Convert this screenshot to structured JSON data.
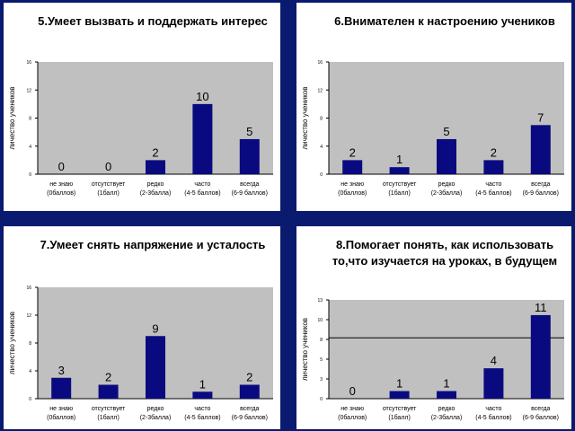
{
  "colors": {
    "background": "#0a1a6e",
    "panel": "#ffffff",
    "plot_area": "#c0c0c0",
    "bar": "#0a0a80",
    "reference_line": "#000000"
  },
  "panels": [
    {
      "title": "5.Умеет вызвать и поддержать интерес"
    },
    {
      "title": "6.Внимателен к настроению учеников"
    },
    {
      "title": "7.Умеет снять напряжение и усталость"
    },
    {
      "title": "8.Помогает понять, как использовать то,что изучается на уроках, в будущем"
    }
  ],
  "chart_data": [
    {
      "type": "bar",
      "title": "5.Умеет вызвать и поддержать интерес",
      "ylabel": "личество учеников",
      "ylim": [
        0,
        16
      ],
      "yticks": [
        "0",
        "4",
        "8",
        "12",
        "16"
      ],
      "categories": [
        "не знаю (0баллов)",
        "отсутствует (1балл)",
        "редко (2-3балла)",
        "часто (4-5 баллов)",
        "всегда (6-9 баллов)"
      ],
      "values": [
        0,
        0,
        2,
        10,
        5
      ],
      "data_labels": [
        "0",
        "0",
        "2",
        "10",
        "5"
      ],
      "grid": false
    },
    {
      "type": "bar",
      "title": "6.Внимателен к настроению учеников",
      "ylabel": "личество учеников",
      "ylim": [
        0,
        16
      ],
      "yticks": [
        "0",
        "4",
        "8",
        "12",
        "16"
      ],
      "categories": [
        "не знаю (0баллов)",
        "отсутствует (1балл)",
        "редко (2-3балла)",
        "часто (4-5 баллов)",
        "всегда (6-9 баллов)"
      ],
      "values": [
        2,
        1,
        5,
        2,
        7
      ],
      "data_labels": [
        "2",
        "1",
        "5",
        "2",
        "7"
      ],
      "grid": false
    },
    {
      "type": "bar",
      "title": "7.Умеет снять напряжение и усталость",
      "ylabel": "личество учеников",
      "ylim": [
        0,
        16
      ],
      "yticks": [
        "0",
        "4",
        "8",
        "12",
        "16"
      ],
      "categories": [
        "не знаю (0баллов)",
        "отсутствует (1балл)",
        "редко (2-3балла)",
        "часто (4-5 баллов)",
        "всегда (6-9 баллов)"
      ],
      "values": [
        3,
        2,
        9,
        1,
        2
      ],
      "data_labels": [
        "3",
        "2",
        "9",
        "1",
        "2"
      ],
      "grid": false
    },
    {
      "type": "bar",
      "title": "8.Помогает понять, как использовать то,что изучается на уроках, в будущем",
      "ylabel": "личество учеников",
      "ylim": [
        0,
        13
      ],
      "yticks": [
        "0",
        "3",
        "5",
        "8",
        "10",
        "13"
      ],
      "categories": [
        "не знаю (0баллов)",
        "отсутствует (1балл)",
        "редко (2-3балла)",
        "часто (4-5 баллов)",
        "всегда (6-9 баллов)"
      ],
      "values": [
        0,
        1,
        1,
        4,
        11
      ],
      "data_labels": [
        "0",
        "1",
        "1",
        "4",
        "11"
      ],
      "reference_line": 8,
      "grid": false
    }
  ]
}
